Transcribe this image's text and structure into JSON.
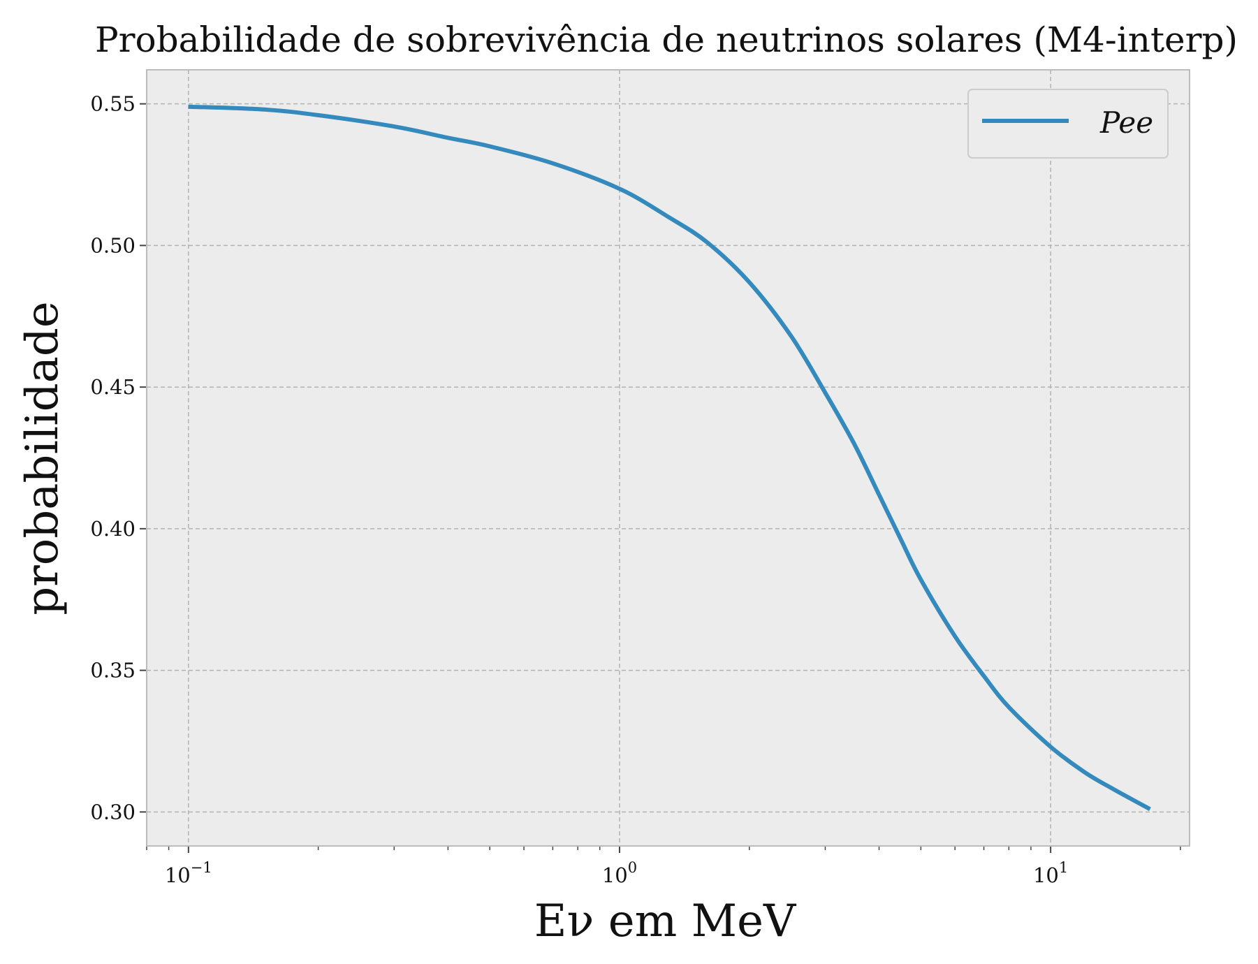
{
  "chart_data": {
    "type": "line",
    "title": "Probabilidade de sobrevivência de neutrinos solares (M4-interp)",
    "xlabel": "Eν em MeV",
    "ylabel": "probabilidade",
    "xscale": "log",
    "xlim": [
      0.08,
      21
    ],
    "ylim": [
      0.288,
      0.562
    ],
    "grid": true,
    "legend_position": "top-right",
    "x_ticks": [
      0.1,
      1,
      10
    ],
    "x_tick_labels": [
      "10−1",
      "100",
      "101"
    ],
    "y_ticks": [
      0.3,
      0.35,
      0.4,
      0.45,
      0.5,
      0.55
    ],
    "y_tick_labels": [
      "0.30",
      "0.35",
      "0.40",
      "0.45",
      "0.50",
      "0.55"
    ],
    "series": [
      {
        "name": "Pee",
        "color": "#348abd",
        "x": [
          0.1,
          0.15,
          0.2,
          0.3,
          0.4,
          0.5,
          0.7,
          1.0,
          1.3,
          1.6,
          2.0,
          2.5,
          3.0,
          3.5,
          4.0,
          4.5,
          5.0,
          6.0,
          7.0,
          8.0,
          10.0,
          12.0,
          14.0,
          17.0
        ],
        "y": [
          0.549,
          0.548,
          0.546,
          0.542,
          0.538,
          0.535,
          0.529,
          0.52,
          0.51,
          0.501,
          0.487,
          0.468,
          0.448,
          0.43,
          0.412,
          0.396,
          0.382,
          0.362,
          0.348,
          0.337,
          0.323,
          0.314,
          0.308,
          0.301
        ]
      }
    ]
  }
}
